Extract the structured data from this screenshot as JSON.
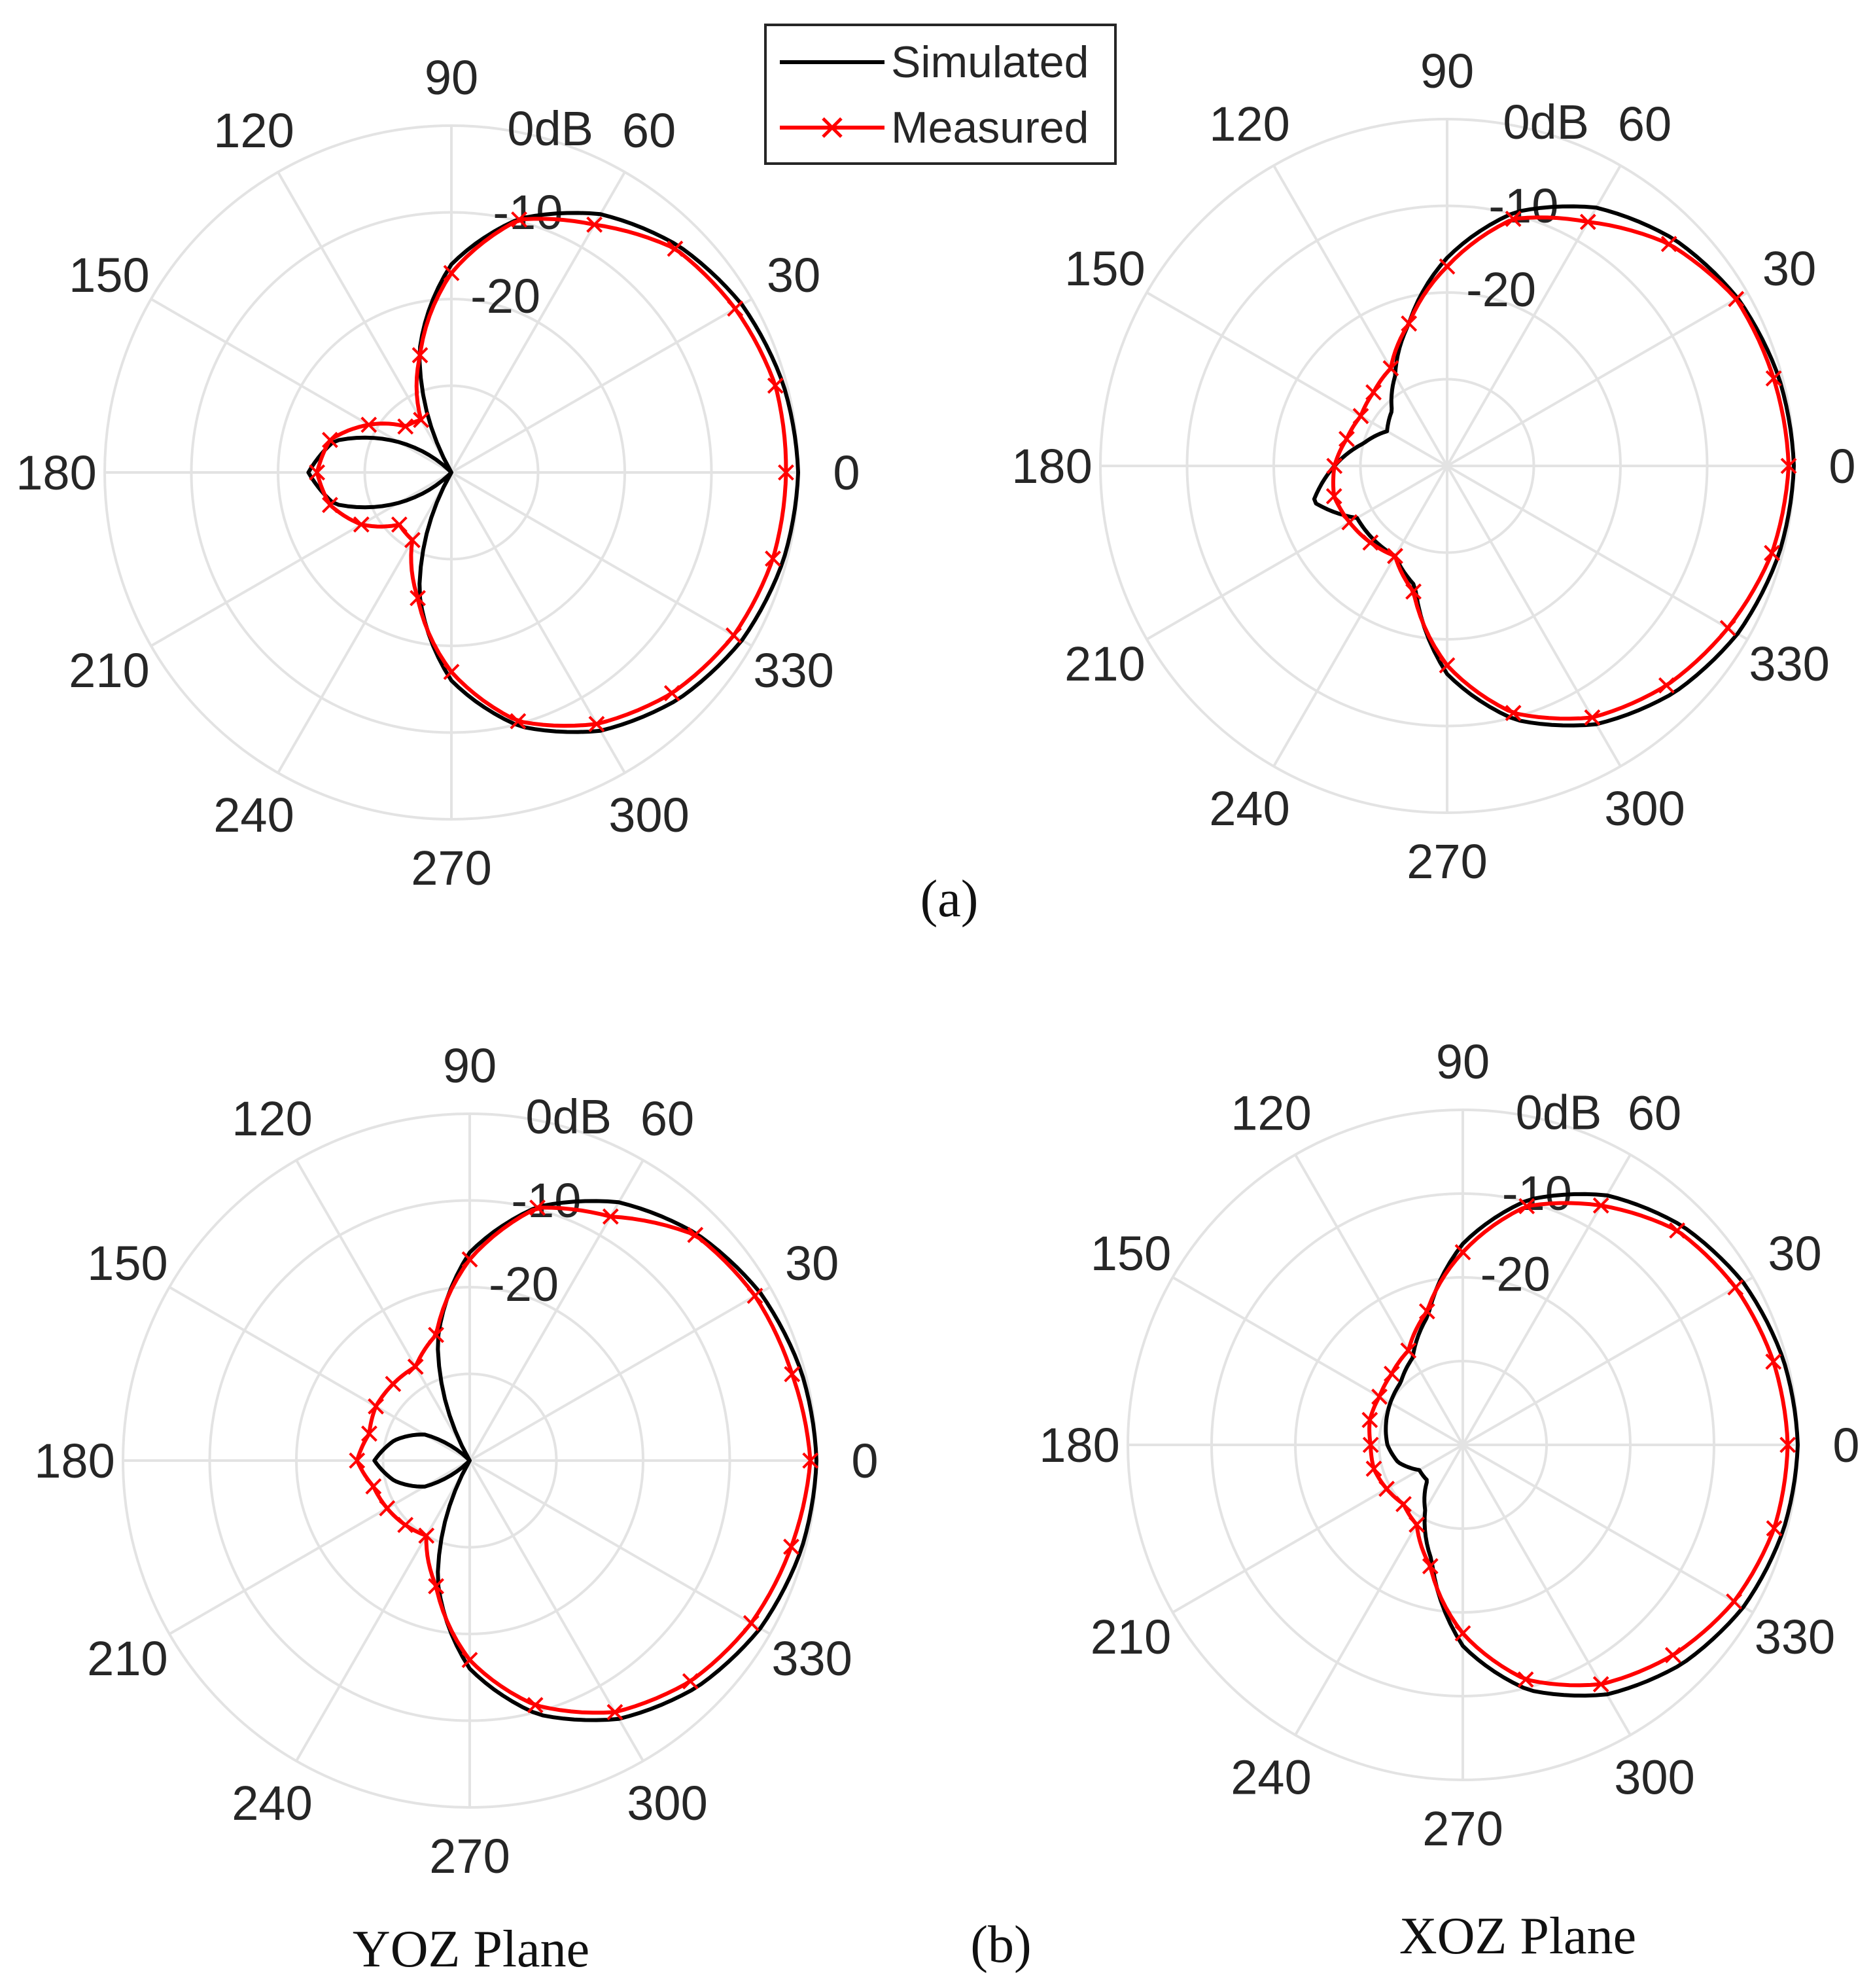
{
  "legend": {
    "items": [
      {
        "label": "Simulated",
        "color": "#000000",
        "marker": "none"
      },
      {
        "label": "Measured",
        "color": "#ff0000",
        "marker": "x"
      }
    ]
  },
  "captions": {
    "a": "(a)",
    "b": "(b)",
    "yoz": "YOZ Plane",
    "xoz": "XOZ Plane"
  },
  "chart_data": [
    {
      "panel": "(a) left",
      "type": "line",
      "coordinate_system": "polar",
      "angle_unit": "deg",
      "angle_ticks": [
        "0",
        "30",
        "60",
        "90",
        "120",
        "150",
        "180",
        "210",
        "240",
        "270",
        "300",
        "330"
      ],
      "radial_ticks": [
        "0dB",
        "-10",
        "-20"
      ],
      "radial_range_db": [
        -40,
        0
      ],
      "grid": true,
      "series": [
        {
          "name": "Simulated",
          "color": "#000000",
          "theta_deg": [
            0,
            15,
            30,
            45,
            60,
            75,
            90,
            105,
            120,
            135,
            150,
            165,
            180,
            195,
            210,
            225,
            240,
            255,
            270,
            285,
            300,
            315,
            330,
            345
          ],
          "r_db": [
            0,
            -0.4,
            -1.3,
            -3,
            -5.6,
            -9.7,
            -16,
            -25.7,
            -40,
            -40,
            -33,
            -26,
            -23.5,
            -26,
            -33,
            -40,
            -40,
            -25.7,
            -16,
            -9.7,
            -5.6,
            -3,
            -1.3,
            -0.4
          ]
        },
        {
          "name": "Measured",
          "color": "#ff0000",
          "theta_deg": [
            0,
            15,
            30,
            45,
            60,
            75,
            90,
            105,
            120,
            135,
            150,
            165,
            180,
            195,
            210,
            225,
            240,
            255,
            270,
            285,
            300,
            315,
            330,
            345
          ],
          "r_db": [
            -1.4,
            -1.3,
            -2.2,
            -3.5,
            -7,
            -9.8,
            -17,
            -26,
            -33,
            -32.5,
            -29,
            -25.5,
            -24.5,
            -25.5,
            -28,
            -31.5,
            -31,
            -25,
            -17,
            -10.3,
            -6.5,
            -4,
            -2.4,
            -1.6
          ]
        }
      ]
    },
    {
      "panel": "(a) right",
      "type": "line",
      "coordinate_system": "polar",
      "angle_unit": "deg",
      "angle_ticks": [
        "0",
        "30",
        "60",
        "90",
        "120",
        "150",
        "180",
        "210",
        "240",
        "270",
        "300",
        "330"
      ],
      "radial_ticks": [
        "0dB",
        "-10",
        "-20"
      ],
      "radial_range_db": [
        -40,
        0
      ],
      "grid": true,
      "series": [
        {
          "name": "Simulated",
          "color": "#000000",
          "theta_deg": [
            0,
            15,
            30,
            45,
            60,
            75,
            90,
            105,
            120,
            135,
            150,
            165,
            180,
            195,
            210,
            225,
            240,
            255,
            270,
            285,
            300,
            315,
            330,
            345
          ],
          "r_db": [
            0,
            -0.4,
            -1.3,
            -3,
            -5.6,
            -9.7,
            -16,
            -23,
            -28,
            -31,
            -32,
            -30,
            -27,
            -24,
            -28,
            -28,
            -28,
            -25.7,
            -16,
            -9.7,
            -5.6,
            -3,
            -1.3,
            -0.4
          ]
        },
        {
          "name": "Measured",
          "color": "#ff0000",
          "theta_deg": [
            0,
            15,
            30,
            45,
            60,
            75,
            90,
            105,
            120,
            135,
            150,
            165,
            180,
            195,
            210,
            225,
            240,
            255,
            270,
            285,
            300,
            315,
            330,
            345
          ],
          "r_db": [
            -0.6,
            -1,
            -1.5,
            -3.8,
            -7.5,
            -10.5,
            -17,
            -23,
            -27,
            -28,
            -28.5,
            -28,
            -27,
            -26.5,
            -27,
            -27.5,
            -28,
            -25,
            -17,
            -10.5,
            -6.5,
            -4.2,
            -2.6,
            -1.2
          ]
        }
      ]
    },
    {
      "panel": "(b) left",
      "type": "line",
      "coordinate_system": "polar",
      "angle_unit": "deg",
      "angle_ticks": [
        "0",
        "30",
        "60",
        "90",
        "120",
        "150",
        "180",
        "210",
        "240",
        "270",
        "300",
        "330"
      ],
      "radial_ticks": [
        "0dB",
        "-10",
        "-20"
      ],
      "radial_range_db": [
        -40,
        0
      ],
      "grid": true,
      "series": [
        {
          "name": "Simulated",
          "color": "#000000",
          "theta_deg": [
            0,
            15,
            30,
            45,
            60,
            75,
            90,
            105,
            120,
            135,
            150,
            165,
            180,
            195,
            210,
            225,
            240,
            255,
            270,
            285,
            300,
            315,
            330,
            345
          ],
          "r_db": [
            0,
            -0.4,
            -1.3,
            -3,
            -5.6,
            -9.7,
            -16,
            -25.7,
            -40,
            -40,
            -34,
            -31,
            -29,
            -31,
            -34,
            -40,
            -40,
            -25.7,
            -16,
            -9.7,
            -5.6,
            -3,
            -1.3,
            -0.4
          ]
        },
        {
          "name": "Measured",
          "color": "#ff0000",
          "theta_deg": [
            0,
            15,
            30,
            45,
            60,
            75,
            90,
            105,
            120,
            135,
            150,
            165,
            180,
            195,
            210,
            225,
            240,
            255,
            270,
            285,
            300,
            315,
            330,
            345
          ],
          "r_db": [
            -0.7,
            -1.5,
            -2,
            -3.2,
            -7.5,
            -9.8,
            -16.8,
            -25,
            -27.5,
            -27.5,
            -27.5,
            -28,
            -27,
            -28.5,
            -29,
            -29.5,
            -30,
            -25,
            -17,
            -10.8,
            -6.5,
            -4,
            -2.5,
            -1.6
          ]
        }
      ]
    },
    {
      "panel": "(b) right",
      "type": "line",
      "coordinate_system": "polar",
      "angle_unit": "deg",
      "angle_ticks": [
        "0",
        "30",
        "60",
        "90",
        "120",
        "150",
        "180",
        "210",
        "240",
        "270",
        "300",
        "330"
      ],
      "radial_ticks": [
        "0dB",
        "-10",
        "-20"
      ],
      "radial_range_db": [
        -40,
        0
      ],
      "grid": true,
      "series": [
        {
          "name": "Simulated",
          "color": "#000000",
          "theta_deg": [
            0,
            15,
            30,
            45,
            60,
            75,
            90,
            105,
            120,
            135,
            150,
            165,
            180,
            195,
            210,
            225,
            240,
            255,
            270,
            285,
            300,
            315,
            330,
            345
          ],
          "r_db": [
            0,
            -0.4,
            -1.3,
            -3,
            -5.6,
            -9.7,
            -16,
            -24,
            -28,
            -29.5,
            -30,
            -30.5,
            -31,
            -32,
            -34,
            -34,
            -31,
            -25.7,
            -16,
            -9.7,
            -5.6,
            -3,
            -1.3,
            -0.4
          ]
        },
        {
          "name": "Measured",
          "color": "#ff0000",
          "theta_deg": [
            0,
            15,
            30,
            45,
            60,
            75,
            90,
            105,
            120,
            135,
            150,
            165,
            180,
            195,
            210,
            225,
            240,
            255,
            270,
            285,
            300,
            315,
            330,
            345
          ],
          "r_db": [
            -1.2,
            -1.6,
            -2.4,
            -3.8,
            -7,
            -10.5,
            -17,
            -23.5,
            -27,
            -28,
            -28.5,
            -28.5,
            -29,
            -29,
            -29.5,
            -30,
            -29,
            -25,
            -17.5,
            -11,
            -7,
            -4.5,
            -2.6,
            -1.5
          ]
        }
      ]
    }
  ]
}
